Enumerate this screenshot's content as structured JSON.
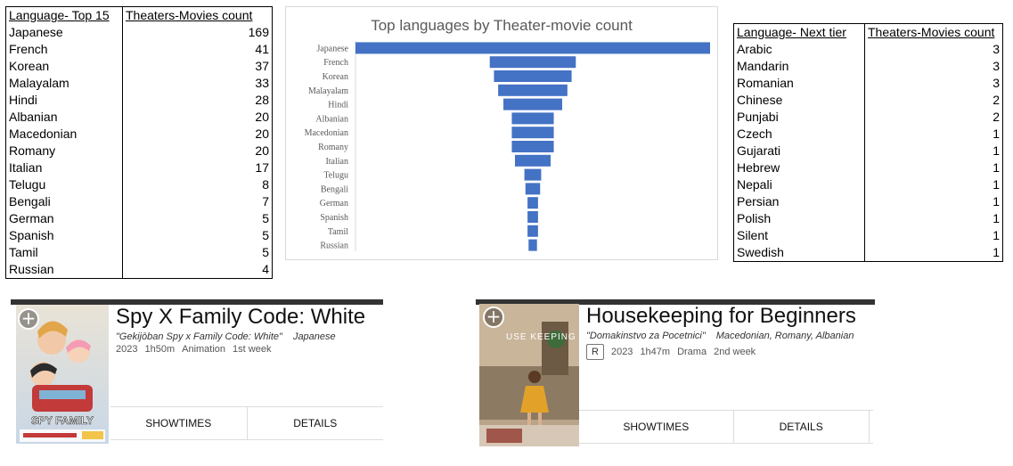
{
  "left_table": {
    "header_language": "Language- Top 15",
    "header_count": "Theaters-Movies count",
    "rows": [
      {
        "language": "Japanese",
        "count": "169"
      },
      {
        "language": "French",
        "count": "41"
      },
      {
        "language": "Korean",
        "count": "37"
      },
      {
        "language": "Malayalam",
        "count": "33"
      },
      {
        "language": "Hindi",
        "count": "28"
      },
      {
        "language": "Albanian",
        "count": "20"
      },
      {
        "language": "Macedonian",
        "count": "20"
      },
      {
        "language": "Romany",
        "count": "20"
      },
      {
        "language": "Italian",
        "count": "17"
      },
      {
        "language": "Telugu",
        "count": "8"
      },
      {
        "language": "Bengali",
        "count": "7"
      },
      {
        "language": "German",
        "count": "5"
      },
      {
        "language": "Spanish",
        "count": "5"
      },
      {
        "language": "Tamil",
        "count": "5"
      },
      {
        "language": "Russian",
        "count": "4"
      }
    ]
  },
  "right_table": {
    "header_language": "Language- Next tier",
    "header_count": "Theaters-Movies count",
    "rows": [
      {
        "language": "Arabic",
        "count": "3"
      },
      {
        "language": "Mandarin",
        "count": "3"
      },
      {
        "language": "Romanian",
        "count": "3"
      },
      {
        "language": "Chinese",
        "count": "2"
      },
      {
        "language": "Punjabi",
        "count": "2"
      },
      {
        "language": "Czech",
        "count": "1"
      },
      {
        "language": "Gujarati",
        "count": "1"
      },
      {
        "language": "Hebrew",
        "count": "1"
      },
      {
        "language": "Nepali",
        "count": "1"
      },
      {
        "language": "Persian",
        "count": "1"
      },
      {
        "language": "Polish",
        "count": "1"
      },
      {
        "language": "Silent",
        "count": "1"
      },
      {
        "language": "Swedish",
        "count": "1"
      }
    ]
  },
  "chart_data": {
    "type": "bar",
    "orientation": "horizontal-funnel",
    "title": "Top languages by Theater-movie count",
    "categories": [
      "Japanese",
      "French",
      "Korean",
      "Malayalam",
      "Hindi",
      "Albanian",
      "Macedonian",
      "Romany",
      "Italian",
      "Telugu",
      "Bengali",
      "German",
      "Spanish",
      "Tamil",
      "Russian"
    ],
    "values": [
      169,
      41,
      37,
      33,
      28,
      20,
      20,
      20,
      17,
      8,
      7,
      5,
      5,
      5,
      4
    ],
    "xlabel": "",
    "ylabel": "",
    "grid": false,
    "bar_color": "#4472C4"
  },
  "movies": [
    {
      "title": "Spy X Family Code: White",
      "original_title": "\"Gekijōban Spy x Family Code: White\"",
      "languages": "Japanese",
      "year": "2023",
      "runtime": "1h50m",
      "genre": "Animation",
      "week": "1st week",
      "rating": "",
      "showtimes_label": "SHOWTIMES",
      "details_label": "DETAILS",
      "poster_text": "SPY FAMILY"
    },
    {
      "title": "Housekeeping for Beginners",
      "original_title": "\"Domakinstvo za Pocetnici\"",
      "languages": "Macedonian, Romany, Albanian",
      "year": "2023",
      "runtime": "1h47m",
      "genre": "Drama",
      "week": "2nd week",
      "rating": "R",
      "showtimes_label": "SHOWTIMES",
      "details_label": "DETAILS",
      "poster_text": "USE KEEPING for BEGINNERS"
    }
  ]
}
